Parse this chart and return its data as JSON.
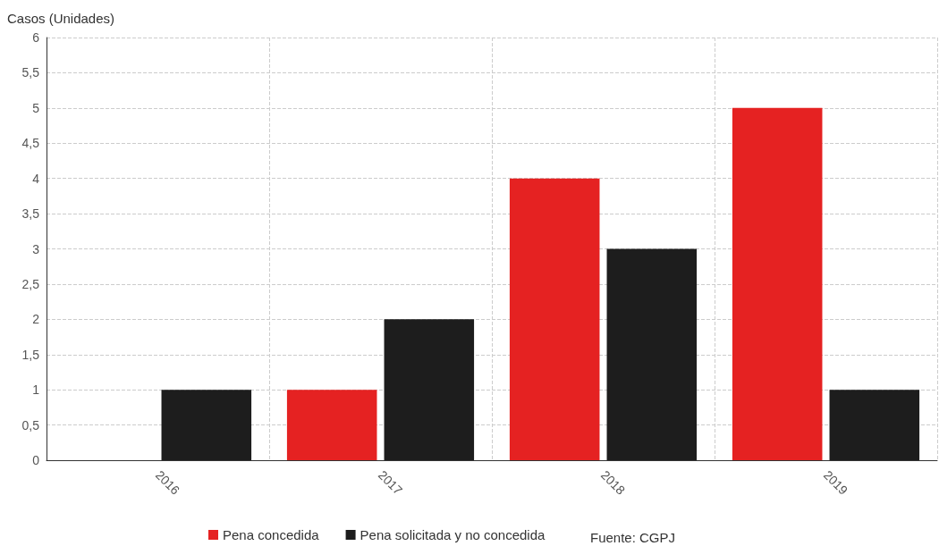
{
  "chart_data": {
    "type": "bar",
    "ylabel": "Casos (Unidades)",
    "categories": [
      "2016",
      "2017",
      "2018",
      "2019"
    ],
    "series": [
      {
        "name": "Pena concedida",
        "color": "#e52222",
        "values": [
          0,
          1,
          4,
          5
        ]
      },
      {
        "name": "Pena solicitada y no concedida",
        "color": "#1d1d1d",
        "values": [
          1,
          2,
          3,
          1
        ]
      }
    ],
    "ylim": [
      0,
      6
    ],
    "yticks": [
      0,
      {
        "value": 0.5,
        "label": "0,5"
      },
      1,
      {
        "value": 1.5,
        "label": "1,5"
      },
      2,
      {
        "value": 2.5,
        "label": "2,5"
      },
      3,
      {
        "value": 3.5,
        "label": "3,5"
      },
      4,
      {
        "value": 4.5,
        "label": "4,5"
      },
      5,
      {
        "value": 5.5,
        "label": "5,5"
      },
      6
    ],
    "grid": true,
    "legend": "bottom",
    "annotations": [
      "Fuente: CGPJ"
    ]
  }
}
